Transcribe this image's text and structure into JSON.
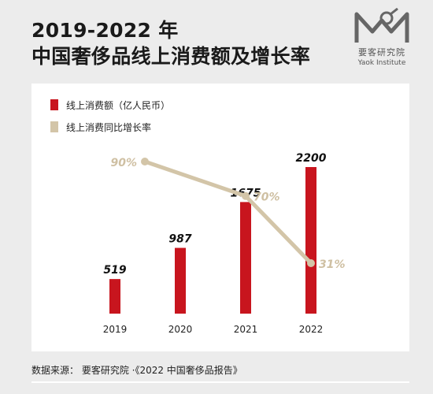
{
  "title_line1": "2019-2022 年",
  "title_line2": "中国奢侈品线上消费额及增长率",
  "logo": {
    "name": "要客研究院",
    "subtitle": "Yaok Institute",
    "icon": "yaok-logo-icon"
  },
  "source": "数据来源：  要客研究院 ·《2022 中国奢侈品报告》",
  "colors": {
    "bar": "#c8151e",
    "line": "#d3c5a8",
    "line_label": "#cfc0a3"
  },
  "chart_data": {
    "type": "bar+line",
    "categories": [
      "2019",
      "2020",
      "2021",
      "2022"
    ],
    "series": [
      {
        "name": "线上消费额（亿人民币）",
        "type": "bar",
        "values": [
          519,
          987,
          1675,
          2200
        ],
        "labels": [
          "519",
          "987",
          "1675",
          "2200"
        ]
      },
      {
        "name": "线上消费同比增长率",
        "type": "line",
        "x": [
          "2020",
          "2021",
          "2022"
        ],
        "values": [
          90,
          70,
          31
        ],
        "labels": [
          "90%",
          "70%",
          "31%"
        ]
      }
    ],
    "legend_position": "top-left",
    "grid": false
  }
}
